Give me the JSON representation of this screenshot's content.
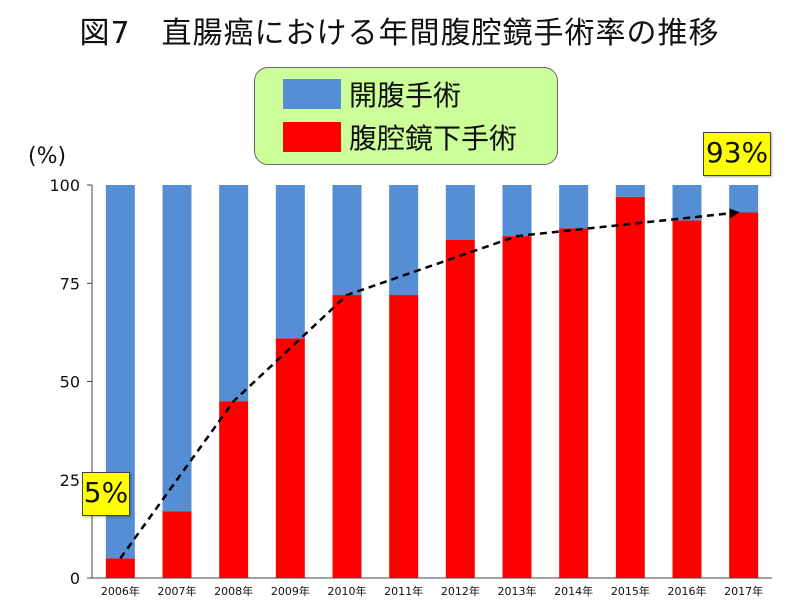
{
  "chart_data": {
    "type": "bar",
    "stacked": true,
    "title": "図7　直腸癌における年間腹腔鏡手術率の推移",
    "ylabel": "(%)",
    "ylim": [
      0,
      100
    ],
    "yticks": [
      0,
      25,
      50,
      75,
      100
    ],
    "categories": [
      "2006年",
      "2007年",
      "2008年",
      "2009年",
      "2010年",
      "2011年",
      "2012年",
      "2013年",
      "2014年",
      "2015年",
      "2016年",
      "2017年"
    ],
    "series": [
      {
        "name": "腹腔鏡下手術",
        "color": "#ff0000",
        "values": [
          5,
          17,
          45,
          61,
          72,
          72,
          86,
          87,
          89,
          97,
          91,
          93
        ]
      },
      {
        "name": "開腹手術",
        "color": "#558ed5",
        "values": [
          95,
          83,
          55,
          39,
          28,
          28,
          14,
          13,
          11,
          3,
          9,
          7
        ]
      }
    ],
    "trend_line": {
      "style": "dashed",
      "color": "#000000",
      "arrow": true,
      "y": [
        5,
        45,
        72,
        87,
        93
      ]
    },
    "annotations": [
      {
        "text": "5%",
        "value": 5,
        "category": "2006年"
      },
      {
        "text": "93%",
        "value": 93,
        "category": "2017年"
      }
    ],
    "legend": {
      "position": "top-center",
      "background": "#ccff99"
    },
    "grid": false
  }
}
